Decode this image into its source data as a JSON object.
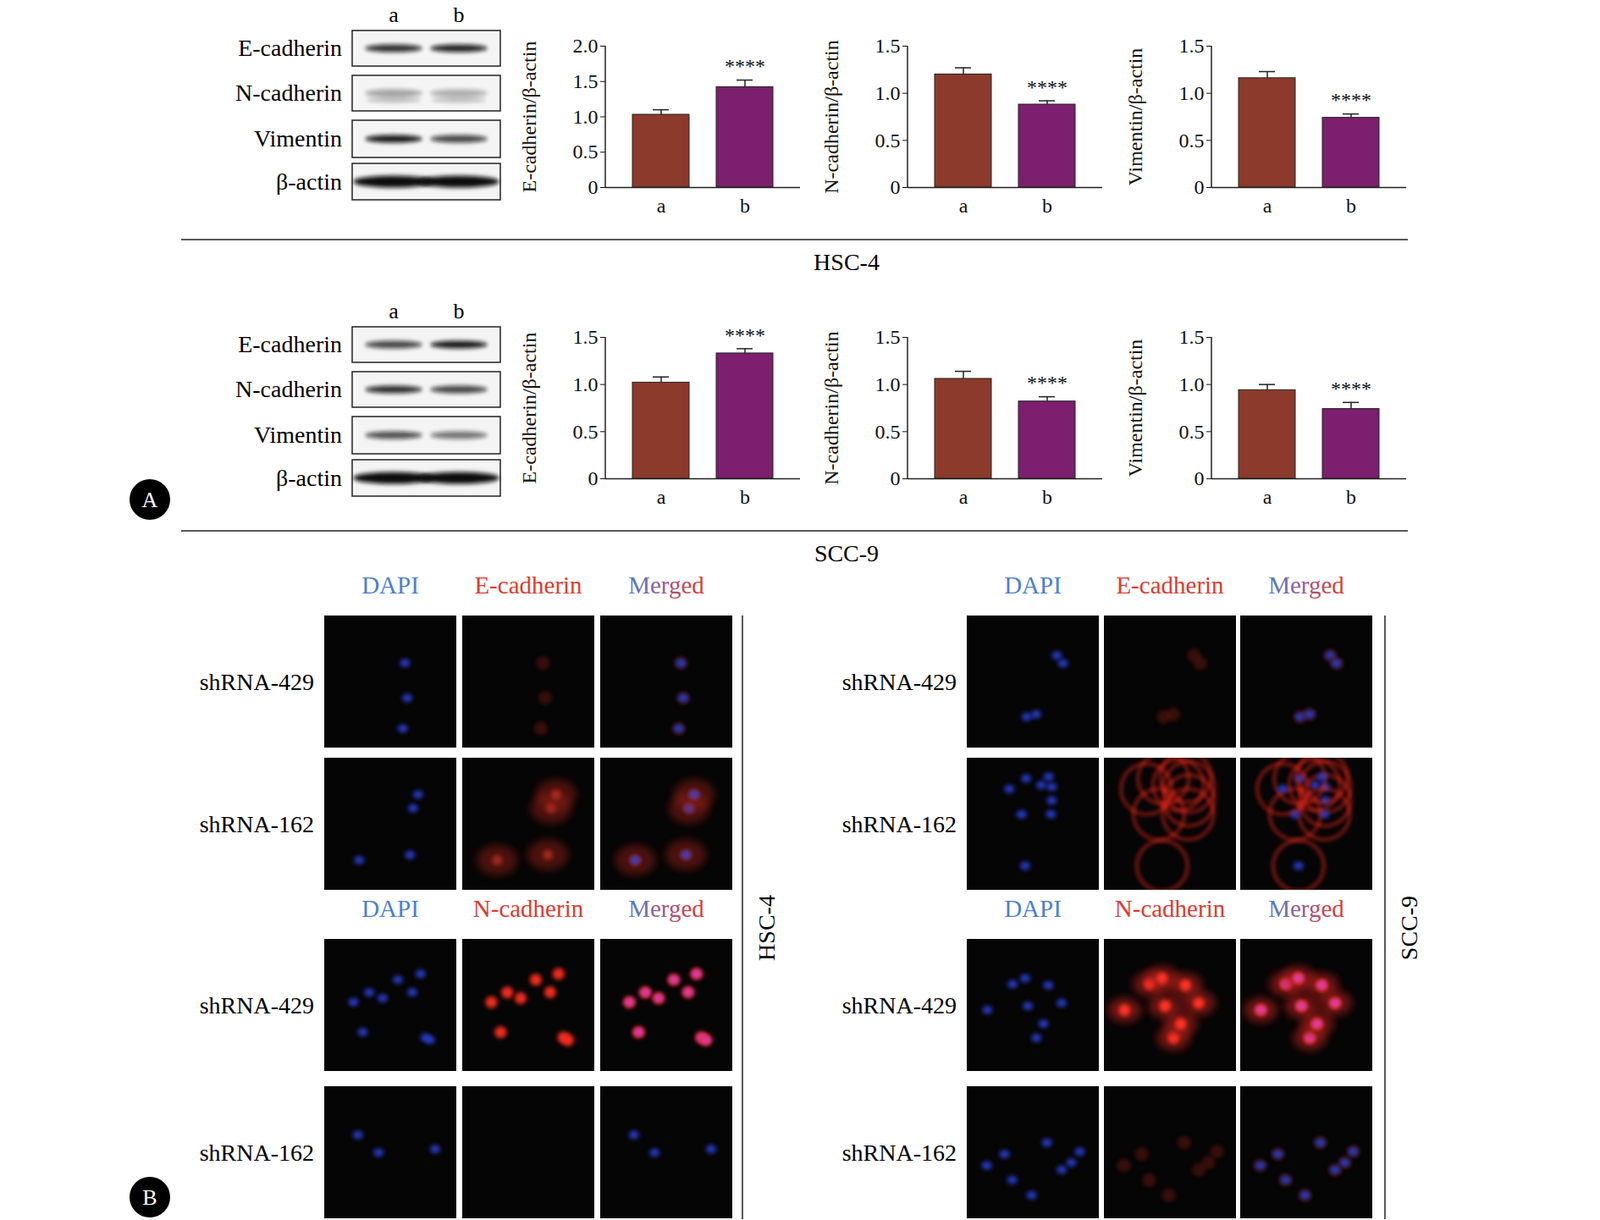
{
  "chart_data": [
    {
      "type": "bar",
      "y_label": "E-cadherin/β-actin",
      "categories": [
        "a",
        "b"
      ],
      "values": [
        1.03,
        1.42
      ],
      "errors": [
        0.07,
        0.1
      ],
      "colors": [
        "#8b3a2b",
        "#7b1f6e"
      ],
      "ylim": [
        0,
        2
      ],
      "yticks": [
        0,
        0.5,
        {
          "value": 1,
          "label": "1.0"
        },
        1.5,
        {
          "value": 2,
          "label": "2.0"
        }
      ],
      "annotations": [
        {
          "category": "b",
          "text": "****"
        }
      ]
    },
    {
      "type": "bar",
      "y_label": "N-cadherin/β-actin",
      "categories": [
        "a",
        "b"
      ],
      "values": [
        1.2,
        0.88
      ],
      "errors": [
        0.07,
        0.04
      ],
      "colors": [
        "#8b3a2b",
        "#7b1f6e"
      ],
      "ylim": [
        0,
        1.5
      ],
      "yticks": [
        0,
        0.5,
        {
          "value": 1,
          "label": "1.0"
        },
        1.5
      ],
      "annotations": [
        {
          "category": "b",
          "text": "****"
        }
      ]
    },
    {
      "type": "bar",
      "y_label": "Vimentin/β-actin",
      "categories": [
        "a",
        "b"
      ],
      "values": [
        1.16,
        0.74
      ],
      "errors": [
        0.07,
        0.04
      ],
      "colors": [
        "#8b3a2b",
        "#7b1f6e"
      ],
      "ylim": [
        0,
        1.5
      ],
      "yticks": [
        0,
        0.5,
        {
          "value": 1,
          "label": "1.0"
        },
        1.5
      ],
      "annotations": [
        {
          "category": "b",
          "text": "****"
        }
      ]
    },
    {
      "type": "bar",
      "y_label": "E-cadherin/β-actin",
      "categories": [
        "a",
        "b"
      ],
      "values": [
        1.02,
        1.33
      ],
      "errors": [
        0.06,
        0.05
      ],
      "colors": [
        "#8b3a2b",
        "#7b1f6e"
      ],
      "ylim": [
        0,
        1.5
      ],
      "yticks": [
        0,
        0.5,
        {
          "value": 1,
          "label": "1.0"
        },
        1.5
      ],
      "annotations": [
        {
          "category": "b",
          "text": "****"
        }
      ]
    },
    {
      "type": "bar",
      "y_label": "N-cadherin/β-actin",
      "categories": [
        "a",
        "b"
      ],
      "values": [
        1.06,
        0.82
      ],
      "errors": [
        0.08,
        0.05
      ],
      "colors": [
        "#8b3a2b",
        "#7b1f6e"
      ],
      "ylim": [
        0,
        1.5
      ],
      "yticks": [
        0,
        0.5,
        {
          "value": 1,
          "label": "1.0"
        },
        1.5
      ],
      "annotations": [
        {
          "category": "b",
          "text": "****"
        }
      ]
    },
    {
      "type": "bar",
      "y_label": "Vimentin/β-actin",
      "categories": [
        "a",
        "b"
      ],
      "values": [
        0.94,
        0.74
      ],
      "errors": [
        0.06,
        0.07
      ],
      "colors": [
        "#8b3a2b",
        "#7b1f6e"
      ],
      "ylim": [
        0,
        1.5
      ],
      "yticks": [
        0,
        0.5,
        {
          "value": 1,
          "label": "1.0"
        },
        1.5
      ],
      "annotations": [
        {
          "category": "b",
          "text": "****"
        }
      ]
    }
  ],
  "figure": {
    "panel_labels": [
      "A",
      "B"
    ],
    "blots": [
      {
        "cell_line": "HSC-4",
        "lanes": [
          "a",
          "b"
        ],
        "proteins": [
          "E-cadherin",
          "N-cadherin",
          "Vimentin",
          "β-actin"
        ]
      },
      {
        "cell_line": "SCC-9",
        "lanes": [
          "a",
          "b"
        ],
        "proteins": [
          "E-cadherin",
          "N-cadherin",
          "Vimentin",
          "β-actin"
        ]
      }
    ],
    "immunofluorescence": [
      {
        "cell_line": "HSC-4",
        "groups": [
          {
            "headers": [
              "DAPI",
              "E-cadherin",
              "Merged"
            ],
            "rows": [
              "shRNA-429",
              "shRNA-162"
            ]
          },
          {
            "headers": [
              "DAPI",
              "N-cadherin",
              "Merged"
            ],
            "rows": [
              "shRNA-429",
              "shRNA-162"
            ]
          }
        ]
      },
      {
        "cell_line": "SCC-9",
        "groups": [
          {
            "headers": [
              "DAPI",
              "E-cadherin",
              "Merged"
            ],
            "rows": [
              "shRNA-429",
              "shRNA-162"
            ]
          },
          {
            "headers": [
              "DAPI",
              "N-cadherin",
              "Merged"
            ],
            "rows": [
              "shRNA-429",
              "shRNA-162"
            ]
          }
        ]
      }
    ]
  }
}
